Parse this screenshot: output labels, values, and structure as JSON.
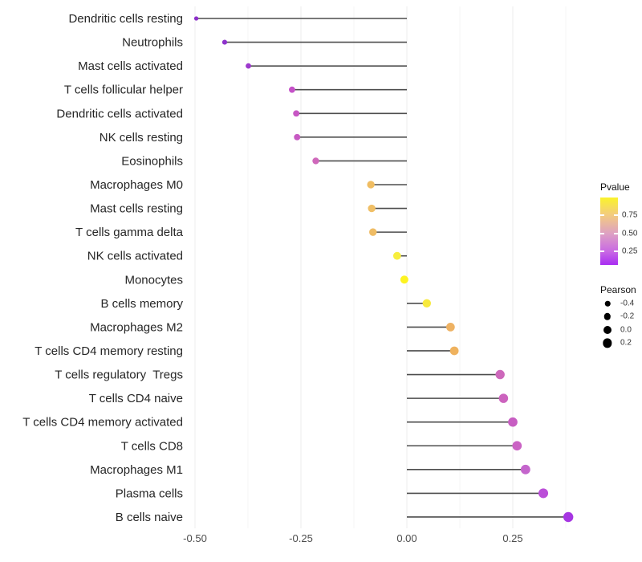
{
  "chart_data": {
    "type": "scatter",
    "variant": "lollipop",
    "title": "",
    "xlabel": "",
    "ylabel": "",
    "x_axis": {
      "ticks": [
        -0.5,
        -0.25,
        0.0,
        0.25
      ],
      "tick_labels": [
        "-0.50",
        "-0.25",
        "0.00",
        "0.25"
      ],
      "minor_ticks": [
        -0.375,
        -0.125,
        0.125,
        0.375
      ],
      "range": [
        -0.54,
        0.428
      ],
      "grid": "on"
    },
    "items": [
      {
        "label": "Dendritic cells resting",
        "pearson": -0.497,
        "dot_color": "#8c2fc9"
      },
      {
        "label": "Neutrophils",
        "pearson": -0.43,
        "dot_color": "#8d32cb"
      },
      {
        "label": "Mast cells activated",
        "pearson": -0.374,
        "dot_color": "#9d39cd"
      },
      {
        "label": "T cells follicular helper",
        "pearson": -0.271,
        "dot_color": "#c551c8"
      },
      {
        "label": "Dendritic cells activated",
        "pearson": -0.261,
        "dot_color": "#c757c4"
      },
      {
        "label": "NK cells resting",
        "pearson": -0.259,
        "dot_color": "#c75ac3"
      },
      {
        "label": "Eosinophils",
        "pearson": -0.215,
        "dot_color": "#cf68bb"
      },
      {
        "label": "Macrophages M0",
        "pearson": -0.085,
        "dot_color": "#f0bd62"
      },
      {
        "label": "Mast cells resting",
        "pearson": -0.083,
        "dot_color": "#f0bf66"
      },
      {
        "label": "T cells gamma delta",
        "pearson": -0.08,
        "dot_color": "#efbc64"
      },
      {
        "label": "NK cells activated",
        "pearson": -0.023,
        "dot_color": "#f7ee3e"
      },
      {
        "label": "Monocytes",
        "pearson": -0.006,
        "dot_color": "#fdf321"
      },
      {
        "label": "B cells memory",
        "pearson": 0.047,
        "dot_color": "#f7e93d"
      },
      {
        "label": "Macrophages M2",
        "pearson": 0.103,
        "dot_color": "#eeb263"
      },
      {
        "label": "T cells CD4 memory resting",
        "pearson": 0.112,
        "dot_color": "#efb25e"
      },
      {
        "label": "T cells regulatory  Tregs",
        "pearson": 0.22,
        "dot_color": "#cd68bb"
      },
      {
        "label": "T cells CD4 naive",
        "pearson": 0.228,
        "dot_color": "#cc63be"
      },
      {
        "label": "T cells CD4 memory activated",
        "pearson": 0.25,
        "dot_color": "#c75ec2"
      },
      {
        "label": "T cells CD8",
        "pearson": 0.26,
        "dot_color": "#ca63c4"
      },
      {
        "label": "Macrophages M1",
        "pearson": 0.28,
        "dot_color": "#c465cc"
      },
      {
        "label": "Plasma cells",
        "pearson": 0.322,
        "dot_color": "#bb4ed8"
      },
      {
        "label": "B cells naive",
        "pearson": 0.381,
        "dot_color": "#a636e2"
      }
    ],
    "legend": {
      "pvalue": {
        "title": "Pvalue",
        "tick_labels": [
          "0.75",
          "0.50",
          "0.25"
        ],
        "tick_offsets": [
          0.262,
          0.536,
          0.798
        ],
        "gradient_stops": [
          {
            "offset": 0.0,
            "color": "#faf32b"
          },
          {
            "offset": 0.26,
            "color": "#f3cb80"
          },
          {
            "offset": 0.54,
            "color": "#dda0c4"
          },
          {
            "offset": 0.8,
            "color": "#c969e3"
          },
          {
            "offset": 1.0,
            "color": "#a82df2"
          }
        ]
      },
      "pearson": {
        "title": "Pearson",
        "dot_color": "#000000",
        "sizes": [
          {
            "label": "-0.4",
            "value": -0.4
          },
          {
            "label": "-0.2",
            "value": -0.2
          },
          {
            "label": "0.0",
            "value": 0.0
          },
          {
            "label": "0.2",
            "value": 0.2
          }
        ]
      }
    },
    "colors": {
      "stem": "#4d4d4d",
      "grid_major": "#ececec",
      "grid_minor": "#f6f6f6",
      "y_label_text": "#262626",
      "x_tick_text": "#4d4d4d",
      "background": "#ffffff"
    }
  }
}
